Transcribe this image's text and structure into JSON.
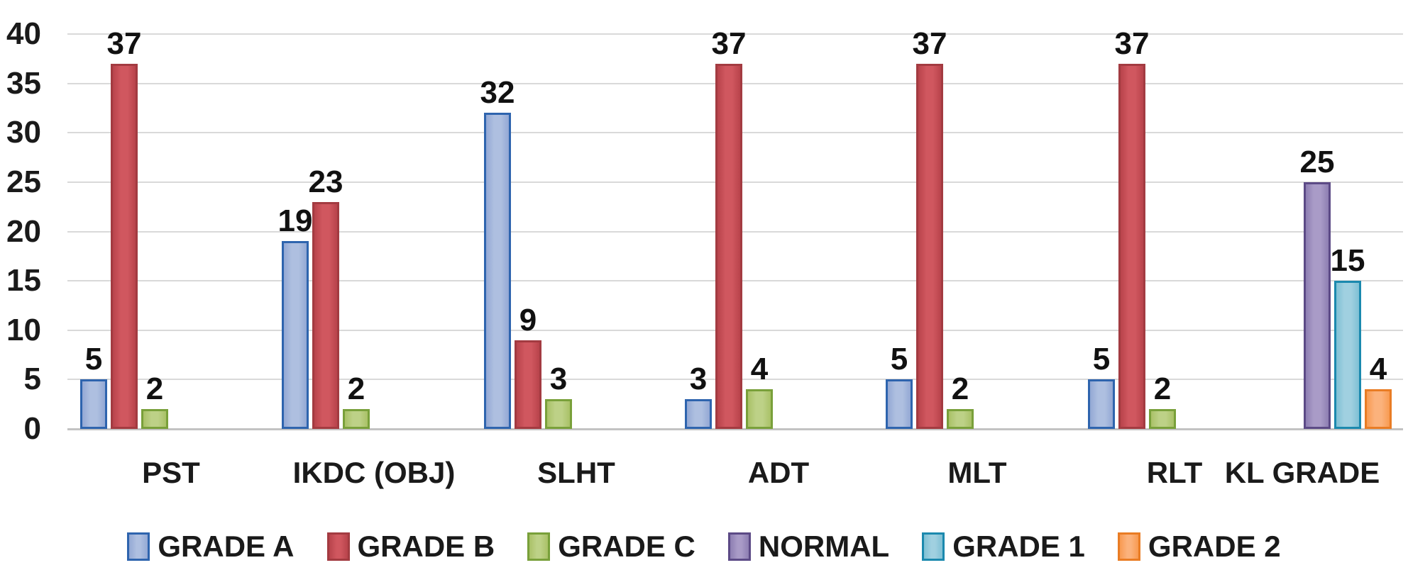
{
  "chart_data": {
    "type": "bar",
    "title": "",
    "xlabel": "",
    "ylabel": "",
    "categories": [
      "PST",
      "IKDC (OBJ)",
      "SLHT",
      "ADT",
      "MLT",
      "RLT",
      "KL GRADE"
    ],
    "series": [
      {
        "name": "GRADE A",
        "values": [
          5,
          19,
          32,
          3,
          5,
          5,
          null
        ],
        "fill": "#aebfe0",
        "fill_edge": "#93a8d4",
        "border": "#2e64ae"
      },
      {
        "name": "GRADE B",
        "values": [
          37,
          23,
          9,
          37,
          37,
          37,
          null
        ],
        "fill": "#d0575f",
        "fill_edge": "#b8434b",
        "border": "#a33b41"
      },
      {
        "name": "GRADE C",
        "values": [
          2,
          2,
          3,
          4,
          2,
          2,
          null
        ],
        "fill": "#bdd187",
        "fill_edge": "#a9c167",
        "border": "#79a03a"
      },
      {
        "name": "NORMAL",
        "values": [
          null,
          null,
          null,
          null,
          null,
          null,
          25
        ],
        "fill": "#a99bc7",
        "fill_edge": "#8d7eb2",
        "border": "#5c4a86"
      },
      {
        "name": "GRADE 1",
        "values": [
          null,
          null,
          null,
          null,
          null,
          null,
          15
        ],
        "fill": "#a0d0e0",
        "fill_edge": "#7fc0d4",
        "border": "#1b89ae"
      },
      {
        "name": "GRADE 2",
        "values": [
          null,
          null,
          null,
          null,
          null,
          null,
          4
        ],
        "fill": "#fbb27c",
        "fill_edge": "#f89a51",
        "border": "#e97c24"
      }
    ],
    "y_axis": {
      "min": 0,
      "max": 40,
      "step": 5,
      "ticks": [
        0,
        5,
        10,
        15,
        20,
        25,
        30,
        35,
        40
      ]
    },
    "grid": true,
    "legend_position": "bottom",
    "colors": {
      "gridline": "#d9d9d9",
      "axis_line": "#c3c3c3",
      "text": "#1a1a1a"
    }
  }
}
